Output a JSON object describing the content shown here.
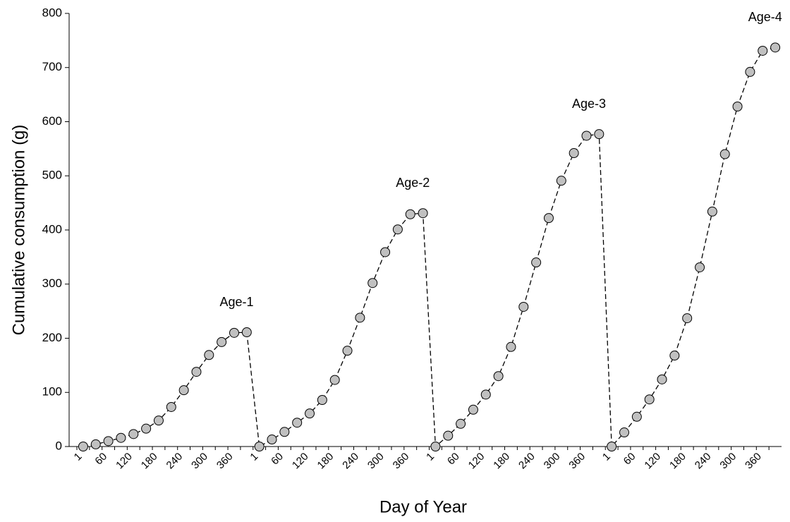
{
  "chart_data": {
    "type": "line",
    "xlabel": "Day of Year",
    "ylabel": "Cumulative consumption (g)",
    "categories": [
      "1",
      null,
      "60",
      null,
      "120",
      null,
      "180",
      null,
      "240",
      null,
      "300",
      null,
      "360",
      null,
      "1",
      null,
      "60",
      null,
      "120",
      null,
      "180",
      null,
      "240",
      null,
      "300",
      null,
      "360",
      null,
      "1",
      null,
      "60",
      null,
      "120",
      null,
      "180",
      null,
      "240",
      null,
      "300",
      null,
      "360",
      null,
      "1",
      null,
      "60",
      null,
      "120",
      null,
      "180",
      null,
      "240",
      null,
      "300",
      null,
      "360",
      null
    ],
    "values": [
      0,
      4,
      10,
      16,
      23,
      33,
      48,
      73,
      104,
      138,
      169,
      193,
      210,
      211,
      0,
      13,
      27,
      44,
      61,
      86,
      123,
      177,
      238,
      302,
      359,
      401,
      429,
      431,
      0,
      20,
      42,
      68,
      96,
      130,
      184,
      258,
      340,
      422,
      491,
      542,
      574,
      577,
      0,
      26,
      55,
      87,
      124,
      168,
      237,
      331,
      434,
      540,
      628,
      692,
      731,
      737
    ],
    "color": "#c0c0c0",
    "line_color": "#000000",
    "annotations": [
      "Age-1",
      "Age-2",
      "Age-3",
      "Age-4"
    ],
    "ylim": [
      0,
      800
    ],
    "yticks": [
      0,
      100,
      200,
      300,
      400,
      500,
      600,
      700,
      800
    ],
    "grid": false
  }
}
